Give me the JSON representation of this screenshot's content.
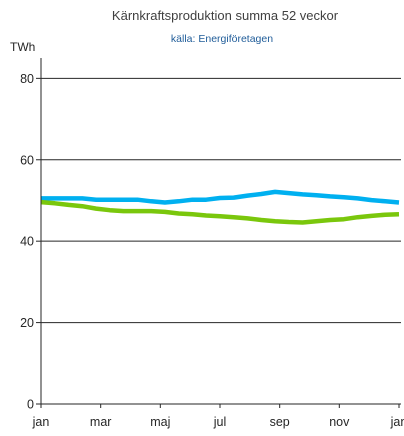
{
  "chart_data": {
    "type": "line",
    "title": "Kärnkraftsproduktion summa 52 veckor",
    "subtitle": "källa: Energiföretagen",
    "unit_label": "TWh",
    "ylim": [
      0,
      85
    ],
    "yticks": [
      0,
      20,
      40,
      60,
      80
    ],
    "xlim": [
      0,
      52
    ],
    "xticks": [
      {
        "label": "jan",
        "x": 0
      },
      {
        "label": "mar",
        "x": 8.67
      },
      {
        "label": "maj",
        "x": 17.33
      },
      {
        "label": "jul",
        "x": 26
      },
      {
        "label": "sep",
        "x": 34.67
      },
      {
        "label": "nov",
        "x": 43.33
      },
      {
        "label": "jan",
        "x": 52
      }
    ],
    "grid": "horizontal",
    "series": [
      {
        "color": "#00b0f0",
        "x": [
          0,
          2,
          4,
          6,
          8,
          10,
          12,
          14,
          16,
          18,
          20,
          22,
          24,
          26,
          28,
          30,
          32,
          34,
          36,
          38,
          40,
          42,
          44,
          46,
          48,
          50,
          52
        ],
        "y": [
          50.5,
          50.5,
          50.5,
          50.5,
          50.2,
          50.2,
          50.2,
          50.2,
          49.8,
          49.5,
          49.8,
          50.2,
          50.2,
          50.6,
          50.7,
          51.2,
          51.6,
          52.1,
          51.8,
          51.5,
          51.3,
          51.0,
          50.8,
          50.5,
          50.1,
          49.8,
          49.5
        ]
      },
      {
        "color": "#7ac70c",
        "x": [
          0,
          2,
          4,
          6,
          8,
          10,
          12,
          14,
          16,
          18,
          20,
          22,
          24,
          26,
          28,
          30,
          32,
          34,
          36,
          38,
          40,
          42,
          44,
          46,
          48,
          50,
          52
        ],
        "y": [
          49.6,
          49.3,
          48.9,
          48.6,
          48.0,
          47.6,
          47.4,
          47.4,
          47.4,
          47.2,
          46.8,
          46.6,
          46.3,
          46.1,
          45.9,
          45.6,
          45.2,
          44.9,
          44.7,
          44.6,
          44.9,
          45.2,
          45.4,
          45.9,
          46.2,
          46.5,
          46.6
        ]
      }
    ]
  }
}
